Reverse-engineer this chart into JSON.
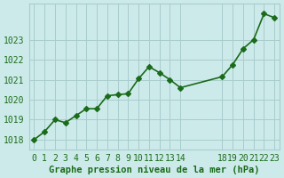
{
  "x": [
    0,
    1,
    2,
    3,
    4,
    5,
    6,
    7,
    8,
    9,
    10,
    11,
    12,
    13,
    14,
    18,
    19,
    20,
    21,
    22,
    23
  ],
  "y": [
    1018.0,
    1018.4,
    1019.0,
    1018.85,
    1019.2,
    1019.55,
    1019.55,
    1020.2,
    1020.25,
    1020.3,
    1021.05,
    1021.65,
    1021.35,
    1021.0,
    1020.6,
    1021.15,
    1021.75,
    1022.55,
    1023.0,
    1024.3,
    1024.1
  ],
  "x_ticks": [
    0,
    1,
    2,
    3,
    4,
    5,
    6,
    7,
    8,
    9,
    10,
    11,
    12,
    13,
    14,
    18,
    19,
    20,
    21,
    22,
    23
  ],
  "x_tick_labels": [
    "0",
    "1",
    "2",
    "3",
    "4",
    "5",
    "6",
    "7",
    "8",
    "9",
    "10",
    "11",
    "12",
    "13",
    "14",
    "18",
    "19",
    "20",
    "21",
    "22",
    "23"
  ],
  "y_ticks": [
    1018,
    1019,
    1020,
    1021,
    1022,
    1023
  ],
  "ylim": [
    1017.5,
    1024.8
  ],
  "xlim": [
    -0.5,
    23.5
  ],
  "line_color": "#1a6b1a",
  "marker": "D",
  "marker_size": 3,
  "bg_color": "#cdeaea",
  "grid_color": "#a8cccc",
  "xlabel": "Graphe pression niveau de la mer (hPa)",
  "xlabel_color": "#1a6b1a",
  "xlabel_fontsize": 7.5,
  "tick_fontsize": 7,
  "tick_color": "#1a6b1a",
  "line_width": 1.2
}
